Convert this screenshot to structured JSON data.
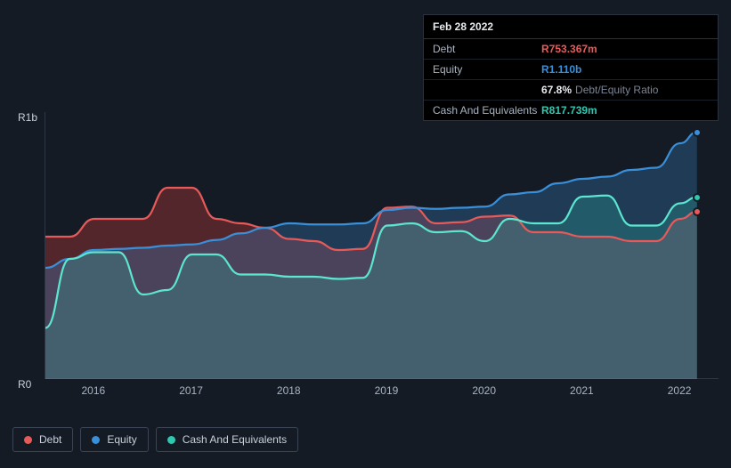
{
  "tooltip": {
    "date": "Feb 28 2022",
    "rows": {
      "debt": {
        "label": "Debt",
        "value": "R753.367m",
        "color": "#e85a5a"
      },
      "equity": {
        "label": "Equity",
        "value": "R1.110b",
        "color": "#3a8fd9"
      },
      "ratio": {
        "label": "",
        "pct": "67.8%",
        "after": "Debt/Equity Ratio"
      },
      "cash": {
        "label": "Cash And Equivalents",
        "value": "R817.739m",
        "color": "#2fc7b0"
      }
    }
  },
  "chart": {
    "type": "area",
    "background_color": "#151b24",
    "grid_color": "#2e3744",
    "y_axis": {
      "top_label": "R1b",
      "bottom_label": "R0",
      "min": 0,
      "max": 1200
    },
    "x_axis": {
      "min": 2015.5,
      "max": 2022.4,
      "ticks": [
        {
          "pos": 2016,
          "label": "2016"
        },
        {
          "pos": 2017,
          "label": "2017"
        },
        {
          "pos": 2018,
          "label": "2018"
        },
        {
          "pos": 2019,
          "label": "2019"
        },
        {
          "pos": 2020,
          "label": "2020"
        },
        {
          "pos": 2021,
          "label": "2021"
        },
        {
          "pos": 2022,
          "label": "2022"
        }
      ]
    },
    "series": {
      "debt": {
        "label": "Debt",
        "stroke": "#e85a5a",
        "fill": "rgba(200,60,60,0.35)",
        "end_dot": "#e85a5a",
        "points": [
          [
            2015.5,
            640
          ],
          [
            2015.75,
            640
          ],
          [
            2016.0,
            720
          ],
          [
            2016.25,
            720
          ],
          [
            2016.5,
            720
          ],
          [
            2016.75,
            860
          ],
          [
            2017.0,
            860
          ],
          [
            2017.25,
            720
          ],
          [
            2017.5,
            700
          ],
          [
            2017.75,
            680
          ],
          [
            2018.0,
            630
          ],
          [
            2018.25,
            620
          ],
          [
            2018.5,
            580
          ],
          [
            2018.75,
            585
          ],
          [
            2019.0,
            770
          ],
          [
            2019.25,
            775
          ],
          [
            2019.5,
            700
          ],
          [
            2019.75,
            705
          ],
          [
            2020.0,
            730
          ],
          [
            2020.25,
            735
          ],
          [
            2020.5,
            660
          ],
          [
            2020.75,
            660
          ],
          [
            2021.0,
            640
          ],
          [
            2021.25,
            640
          ],
          [
            2021.5,
            620
          ],
          [
            2021.75,
            620
          ],
          [
            2022.0,
            720
          ],
          [
            2022.17,
            753
          ]
        ]
      },
      "equity": {
        "label": "Equity",
        "stroke": "#3a8fd9",
        "fill": "rgba(58,143,217,0.28)",
        "end_dot": "#3a8fd9",
        "points": [
          [
            2015.5,
            500
          ],
          [
            2015.75,
            540
          ],
          [
            2016.0,
            580
          ],
          [
            2016.25,
            585
          ],
          [
            2016.5,
            590
          ],
          [
            2016.75,
            600
          ],
          [
            2017.0,
            605
          ],
          [
            2017.25,
            625
          ],
          [
            2017.5,
            655
          ],
          [
            2017.75,
            680
          ],
          [
            2018.0,
            700
          ],
          [
            2018.25,
            695
          ],
          [
            2018.5,
            695
          ],
          [
            2018.75,
            700
          ],
          [
            2019.0,
            760
          ],
          [
            2019.25,
            770
          ],
          [
            2019.5,
            765
          ],
          [
            2019.75,
            770
          ],
          [
            2020.0,
            775
          ],
          [
            2020.25,
            830
          ],
          [
            2020.5,
            840
          ],
          [
            2020.75,
            880
          ],
          [
            2021.0,
            900
          ],
          [
            2021.25,
            910
          ],
          [
            2021.5,
            940
          ],
          [
            2021.75,
            950
          ],
          [
            2022.0,
            1060
          ],
          [
            2022.17,
            1110
          ]
        ]
      },
      "cash": {
        "label": "Cash And Equivalents",
        "stroke": "#5ce6d0",
        "fill": "rgba(47,199,176,0.22)",
        "end_dot": "#2fc7b0",
        "points": [
          [
            2015.5,
            230
          ],
          [
            2015.75,
            540
          ],
          [
            2016.0,
            570
          ],
          [
            2016.25,
            570
          ],
          [
            2016.5,
            380
          ],
          [
            2016.75,
            400
          ],
          [
            2017.0,
            560
          ],
          [
            2017.25,
            560
          ],
          [
            2017.5,
            470
          ],
          [
            2017.75,
            470
          ],
          [
            2018.0,
            460
          ],
          [
            2018.25,
            460
          ],
          [
            2018.5,
            450
          ],
          [
            2018.75,
            455
          ],
          [
            2019.0,
            690
          ],
          [
            2019.25,
            700
          ],
          [
            2019.5,
            660
          ],
          [
            2019.75,
            665
          ],
          [
            2020.0,
            620
          ],
          [
            2020.25,
            720
          ],
          [
            2020.5,
            700
          ],
          [
            2020.75,
            700
          ],
          [
            2021.0,
            820
          ],
          [
            2021.25,
            825
          ],
          [
            2021.5,
            690
          ],
          [
            2021.75,
            690
          ],
          [
            2022.0,
            790
          ],
          [
            2022.17,
            818
          ]
        ]
      }
    }
  },
  "legend": {
    "debt": {
      "label": "Debt",
      "color": "#e85a5a"
    },
    "equity": {
      "label": "Equity",
      "color": "#3a8fd9"
    },
    "cash": {
      "label": "Cash And Equivalents",
      "color": "#2fc7b0"
    }
  }
}
